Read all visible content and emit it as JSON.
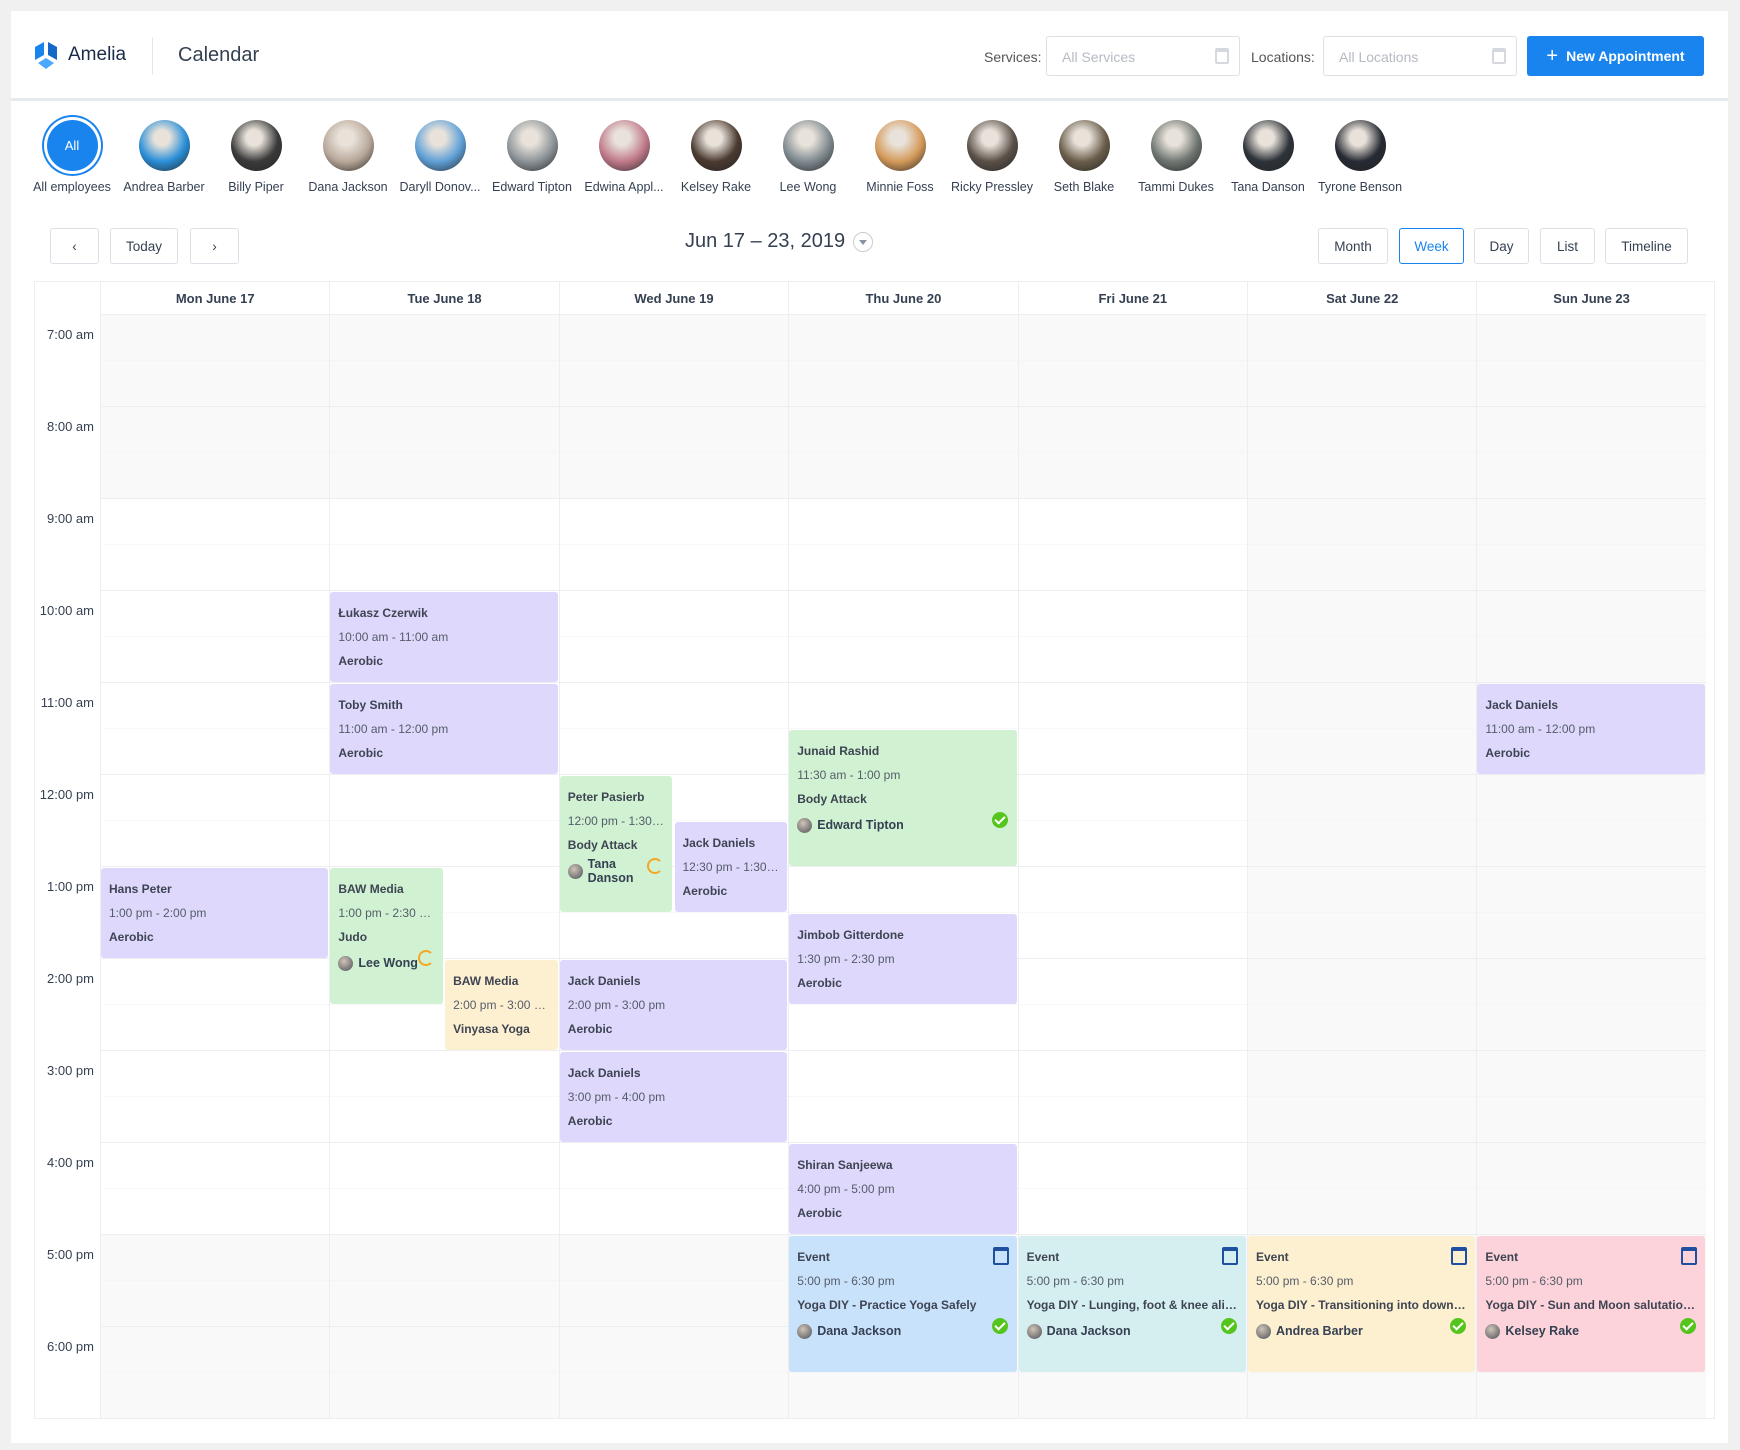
{
  "header": {
    "brand": "Amelia",
    "title": "Calendar",
    "services_label": "Services:",
    "services_placeholder": "All Services",
    "locations_label": "Locations:",
    "locations_placeholder": "All Locations",
    "new_appointment": "New Appointment",
    "accent": "#1a84ee"
  },
  "employees": [
    {
      "name": "All employees",
      "badge": "All",
      "selected": true
    },
    {
      "name": "Andrea Barber",
      "color": "#2a8fd8"
    },
    {
      "name": "Billy Piper",
      "color": "#3a3a3a"
    },
    {
      "name": "Dana Jackson",
      "color": "#b9a89a"
    },
    {
      "name": "Daryll Donov...",
      "color": "#5fa0d8"
    },
    {
      "name": "Edward Tipton",
      "color": "#8d9499"
    },
    {
      "name": "Edwina Appl...",
      "color": "#c07a8a"
    },
    {
      "name": "Kelsey Rake",
      "color": "#4b3a30"
    },
    {
      "name": "Lee Wong",
      "color": "#7f8a90"
    },
    {
      "name": "Minnie Foss",
      "color": "#d59a5a"
    },
    {
      "name": "Ricky Pressley",
      "color": "#5a5048"
    },
    {
      "name": "Seth Blake",
      "color": "#6a5d4a"
    },
    {
      "name": "Tammi Dukes",
      "color": "#6f7672"
    },
    {
      "name": "Tana Danson",
      "color": "#2e333a"
    },
    {
      "name": "Tyrone Benson",
      "color": "#262a33"
    }
  ],
  "toolbar": {
    "prev": "‹",
    "today": "Today",
    "next": "›",
    "range": "Jun 17 – 23, 2019",
    "views": [
      "Month",
      "Week",
      "Day",
      "List",
      "Timeline"
    ],
    "active_view": "Week"
  },
  "days": [
    "Mon June 17",
    "Tue June 18",
    "Wed June 19",
    "Thu June 20",
    "Fri June 21",
    "Sat June 22",
    "Sun June 23"
  ],
  "times": [
    "7:00 am",
    "8:00 am",
    "9:00 am",
    "10:00 am",
    "11:00 am",
    "12:00 pm",
    "1:00 pm",
    "2:00 pm",
    "3:00 pm",
    "4:00 pm",
    "5:00 pm",
    "6:00 pm"
  ],
  "palette": {
    "purple": "#ddd8fc",
    "green": "#d0f2d2",
    "yellow": "#fdf0d1",
    "blue": "#c9e2fb",
    "teal": "#d5eff1",
    "pink": "#fcd3da"
  },
  "events": [
    {
      "day": 0,
      "start": 13,
      "end": 14,
      "title": "Hans Peter",
      "time": "1:00 pm - 2:00 pm",
      "service": "Aerobic",
      "color": "purple"
    },
    {
      "day": 1,
      "start": 10,
      "end": 11,
      "title": "Łukasz Czerwik",
      "time": "10:00 am - 11:00 am",
      "service": "Aerobic",
      "color": "purple"
    },
    {
      "day": 1,
      "start": 11,
      "end": 12,
      "title": "Toby Smith",
      "time": "11:00 am - 12:00 pm",
      "service": "Aerobic",
      "color": "purple"
    },
    {
      "day": 1,
      "start": 13,
      "end": 14.5,
      "title": "BAW Media",
      "time": "1:00 pm - 2:30 pm",
      "service": "Judo",
      "color": "green",
      "employee": "Lee Wong",
      "status": "recurring"
    },
    {
      "day": 1,
      "start": 14,
      "end": 15,
      "title": "BAW Media",
      "time": "2:00 pm - 3:00 pm",
      "service": "Vinyasa Yoga",
      "color": "yellow"
    },
    {
      "day": 2,
      "start": 12,
      "end": 13.5,
      "title": "Peter Pasierb",
      "time": "12:00 pm - 1:30 pm",
      "service": "Body Attack",
      "color": "green",
      "employee": "Tana Danson",
      "status": "recurring"
    },
    {
      "day": 2,
      "start": 12.5,
      "end": 13.5,
      "title": "Jack Daniels",
      "time": "12:30 pm - 1:30 pm",
      "service": "Aerobic",
      "color": "purple"
    },
    {
      "day": 2,
      "start": 14,
      "end": 15,
      "title": "Jack Daniels",
      "time": "2:00 pm - 3:00 pm",
      "service": "Aerobic",
      "color": "purple"
    },
    {
      "day": 2,
      "start": 15,
      "end": 16,
      "title": "Jack Daniels",
      "time": "3:00 pm - 4:00 pm",
      "service": "Aerobic",
      "color": "purple"
    },
    {
      "day": 3,
      "start": 11.5,
      "end": 13,
      "title": "Junaid Rashid",
      "time": "11:30 am - 1:00 pm",
      "service": "Body Attack",
      "color": "green",
      "employee": "Edward Tipton",
      "status": "approved"
    },
    {
      "day": 3,
      "start": 13.5,
      "end": 14.5,
      "title": "Jimbob Gitterdone",
      "time": "1:30 pm - 2:30 pm",
      "service": "Aerobic",
      "color": "purple"
    },
    {
      "day": 3,
      "start": 16,
      "end": 17,
      "title": "Shiran Sanjeewa",
      "time": "4:00 pm - 5:00 pm",
      "service": "Aerobic",
      "color": "purple"
    },
    {
      "day": 3,
      "start": 17,
      "end": 18.5,
      "title": "Event",
      "time": "5:00 pm - 6:30 pm",
      "service": "Yoga DIY - Practice Yoga Safely",
      "color": "blue",
      "employee": "Dana Jackson",
      "status": "approved",
      "is_event": true
    },
    {
      "day": 4,
      "start": 17,
      "end": 18.5,
      "title": "Event",
      "time": "5:00 pm - 6:30 pm",
      "service": "Yoga DIY - Lunging, foot & knee align...",
      "color": "teal",
      "employee": "Dana Jackson",
      "status": "approved",
      "is_event": true
    },
    {
      "day": 5,
      "start": 17,
      "end": 18.5,
      "title": "Event",
      "time": "5:00 pm - 6:30 pm",
      "service": "Yoga DIY - Transitioning into downwa...",
      "color": "yellow",
      "employee": "Andrea Barber",
      "status": "approved",
      "is_event": true
    },
    {
      "day": 6,
      "start": 11,
      "end": 12,
      "title": "Jack Daniels",
      "time": "11:00 am - 12:00 pm",
      "service": "Aerobic",
      "color": "purple"
    },
    {
      "day": 6,
      "start": 17,
      "end": 18.5,
      "title": "Event",
      "time": "5:00 pm - 6:30 pm",
      "service": "Yoga DIY - Sun and Moon salutation fl...",
      "color": "pink",
      "employee": "Kelsey Rake",
      "status": "approved",
      "is_event": true
    }
  ]
}
